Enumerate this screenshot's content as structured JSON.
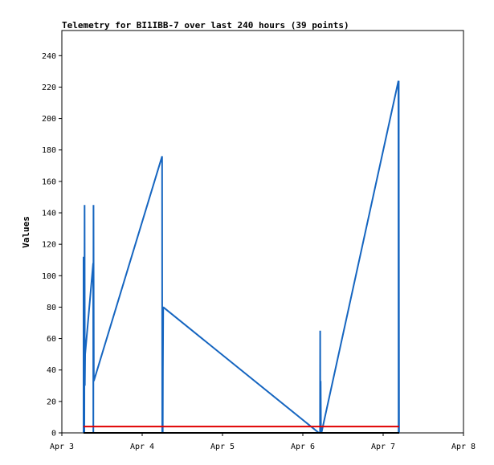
{
  "chart_data": {
    "type": "line",
    "title": "Telemetry for BI1IBB-7 over last 240 hours (39 points)",
    "xlabel": "",
    "ylabel": "Values",
    "xlim": [
      3.0,
      8.0
    ],
    "ylim": [
      0,
      256
    ],
    "x_ticks": [
      {
        "value": 3,
        "label": "Apr 3"
      },
      {
        "value": 4,
        "label": "Apr 4"
      },
      {
        "value": 5,
        "label": "Apr 5"
      },
      {
        "value": 6,
        "label": "Apr 6"
      },
      {
        "value": 7,
        "label": "Apr 7"
      },
      {
        "value": 8,
        "label": "Apr 8"
      }
    ],
    "y_ticks": [
      0,
      20,
      40,
      60,
      80,
      100,
      120,
      140,
      160,
      180,
      200,
      220,
      240
    ],
    "grid": false,
    "series": [
      {
        "color": "#1565c0",
        "points": [
          [
            3.27,
            0
          ],
          [
            3.27,
            112
          ],
          [
            3.272,
            40
          ],
          [
            3.274,
            112
          ],
          [
            3.276,
            50
          ],
          [
            3.28,
            0
          ],
          [
            3.283,
            145
          ],
          [
            3.286,
            30
          ],
          [
            3.29,
            50
          ],
          [
            3.39,
            108
          ],
          [
            3.392,
            0
          ],
          [
            3.394,
            145
          ],
          [
            3.398,
            33
          ],
          [
            4.248,
            176
          ],
          [
            4.25,
            0
          ],
          [
            4.254,
            80
          ],
          [
            4.256,
            0
          ],
          [
            4.258,
            40
          ],
          [
            4.262,
            80
          ],
          [
            6.2,
            0
          ],
          [
            6.214,
            0
          ],
          [
            6.216,
            65
          ],
          [
            6.218,
            0
          ],
          [
            6.222,
            33
          ],
          [
            6.226,
            0
          ],
          [
            6.232,
            0
          ],
          [
            7.19,
            224
          ],
          [
            7.192,
            0
          ],
          [
            7.194,
            224
          ],
          [
            7.198,
            0
          ]
        ]
      },
      {
        "color": "#e00000",
        "points": [
          [
            3.27,
            4
          ],
          [
            7.2,
            4
          ]
        ]
      },
      {
        "color": "#000000",
        "points": [
          [
            3.27,
            0
          ],
          [
            7.2,
            0
          ]
        ]
      }
    ]
  }
}
